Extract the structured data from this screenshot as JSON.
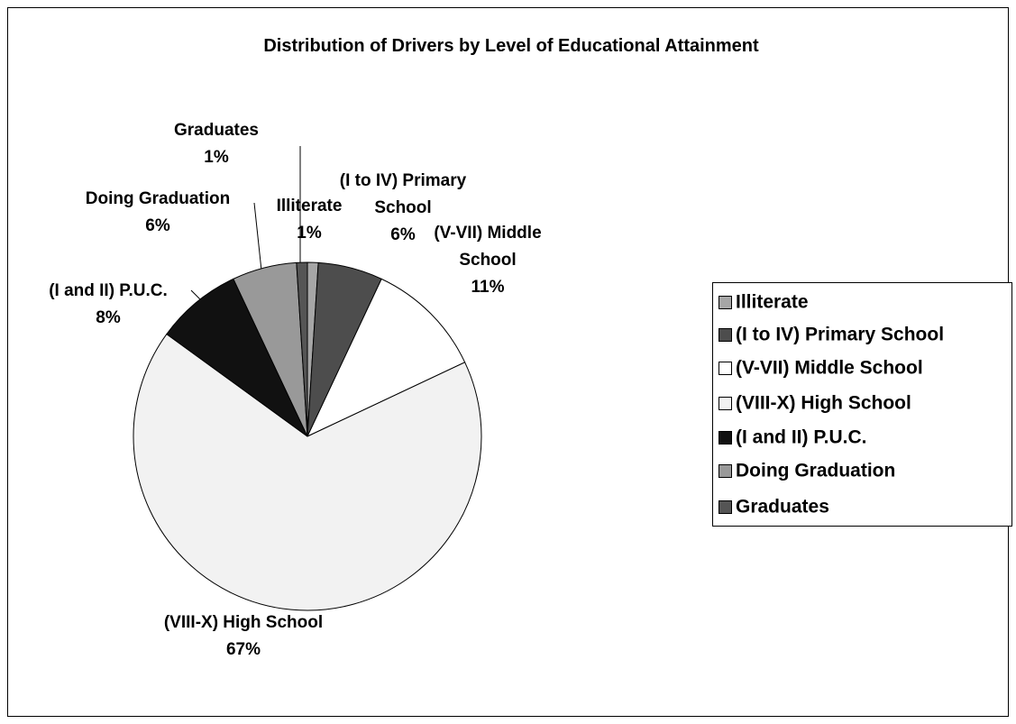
{
  "chart_data": {
    "type": "pie",
    "title": "Distribution of Drivers by Level of Educational  Attainment",
    "categories": [
      "Illiterate",
      "(I to IV) Primary School",
      "(V-VII) Middle School",
      "(VIII-X) High School",
      "(I and II) P.U.C.",
      "Doing Graduation",
      "Graduates"
    ],
    "values": [
      1,
      6,
      11,
      67,
      8,
      6,
      1
    ],
    "value_labels": [
      "1%",
      "6%",
      "11%",
      "67%",
      "8%",
      "6%",
      "1%"
    ],
    "colors": [
      "#a6a6a6",
      "#4d4d4d",
      "#ffffff",
      "#f2f2f2",
      "#111111",
      "#999999",
      "#555555"
    ],
    "legend": "right"
  }
}
